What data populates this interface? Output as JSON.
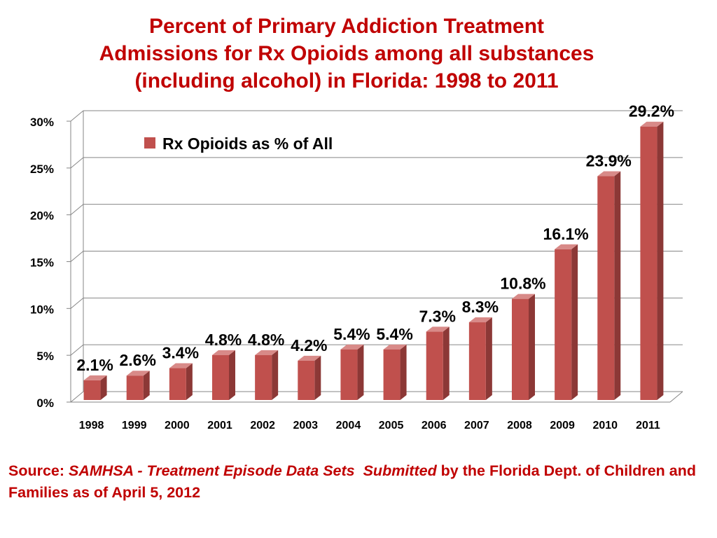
{
  "title_lines": [
    "Percent of Primary Addiction Treatment",
    "Admissions for Rx Opioids among all substances",
    "(including alcohol) in Florida: 1998 to 2011"
  ],
  "source": {
    "prefix": "Source: ",
    "italic_1": "SAMHSA - Treatment Episode Data Sets",
    "gap": "  ",
    "italic_2": "Submitted",
    "rest": " by the Florida Dept. of Children and Families as of April 5, 2012"
  },
  "colors": {
    "title": "#c00000",
    "bar_front": "#c0504d",
    "bar_side": "#8c3836",
    "bar_top": "#d88a88",
    "grid": "#868686",
    "text": "#000000"
  },
  "chart_data": {
    "type": "bar",
    "categories": [
      "1998",
      "1999",
      "2000",
      "2001",
      "2002",
      "2003",
      "2004",
      "2005",
      "2006",
      "2007",
      "2008",
      "2009",
      "2010",
      "2011"
    ],
    "series": [
      {
        "name": "Rx Opioids as % of All",
        "values": [
          2.1,
          2.6,
          3.4,
          4.8,
          4.8,
          4.2,
          5.4,
          5.4,
          7.3,
          8.3,
          10.8,
          16.1,
          23.9,
          29.2
        ],
        "labels": [
          "2.1%",
          "2.6%",
          "3.4%",
          "4.8%",
          "4.8%",
          "4.2%",
          "5.4%",
          "5.4%",
          "7.3%",
          "8.3%",
          "10.8%",
          "16.1%",
          "23.9%",
          "29.2%"
        ]
      }
    ],
    "ylim": [
      0,
      30
    ],
    "yticks": [
      0,
      5,
      10,
      15,
      20,
      25,
      30
    ],
    "ytick_labels": [
      "0%",
      "5%",
      "10%",
      "15%",
      "20%",
      "25%",
      "30%"
    ],
    "grid": true,
    "legend_position": "top-left"
  }
}
